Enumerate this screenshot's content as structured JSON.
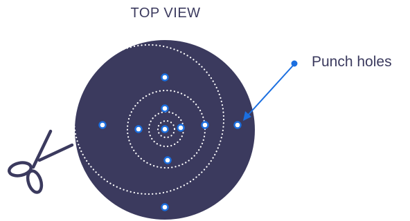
{
  "title": "TOP VIEW",
  "callout": {
    "label": "Punch holes"
  },
  "colors": {
    "disc": "#3b3a5e",
    "hole_fill": "#ffffff",
    "hole_ring": "#1b6fe0",
    "arrow": "#1b6fe0",
    "cut_lines": "#ffffff",
    "text": "#3b3a5e",
    "scissors": "#3b3a5e"
  },
  "icons": {
    "cut": "scissors-icon"
  }
}
